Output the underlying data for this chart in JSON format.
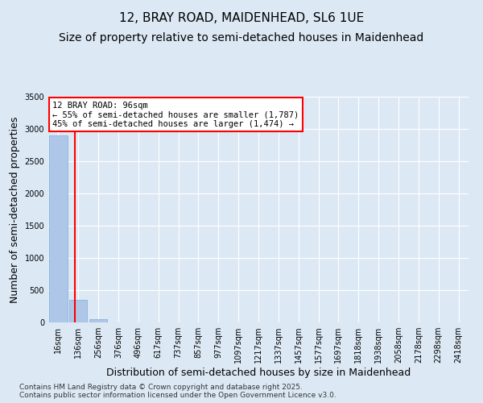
{
  "title_line1": "12, BRAY ROAD, MAIDENHEAD, SL6 1UE",
  "title_line2": "Size of property relative to semi-detached houses in Maidenhead",
  "xlabel": "Distribution of semi-detached houses by size in Maidenhead",
  "ylabel": "Number of semi-detached properties",
  "bin_labels": [
    "16sqm",
    "136sqm",
    "256sqm",
    "376sqm",
    "496sqm",
    "617sqm",
    "737sqm",
    "857sqm",
    "977sqm",
    "1097sqm",
    "1217sqm",
    "1337sqm",
    "1457sqm",
    "1577sqm",
    "1697sqm",
    "1818sqm",
    "1938sqm",
    "2058sqm",
    "2178sqm",
    "2298sqm",
    "2418sqm"
  ],
  "bar_heights": [
    2900,
    350,
    50,
    5,
    2,
    1,
    1,
    0,
    0,
    0,
    0,
    0,
    0,
    0,
    0,
    0,
    0,
    0,
    0,
    0,
    0
  ],
  "bar_color": "#aec6e8",
  "bar_edge_color": "#7aaed6",
  "red_line_x": 0.83,
  "annotation_title": "12 BRAY ROAD: 96sqm",
  "annotation_line1": "← 55% of semi-detached houses are smaller (1,787)",
  "annotation_line2": "45% of semi-detached houses are larger (1,474) →",
  "ylim": [
    0,
    3500
  ],
  "yticks": [
    0,
    500,
    1000,
    1500,
    2000,
    2500,
    3000,
    3500
  ],
  "footer_line1": "Contains HM Land Registry data © Crown copyright and database right 2025.",
  "footer_line2": "Contains public sector information licensed under the Open Government Licence v3.0.",
  "bg_color": "#dce9f5",
  "plot_bg_color": "#dce9f5",
  "grid_color": "#ffffff",
  "title_fontsize": 11,
  "subtitle_fontsize": 10,
  "tick_fontsize": 7,
  "label_fontsize": 9
}
